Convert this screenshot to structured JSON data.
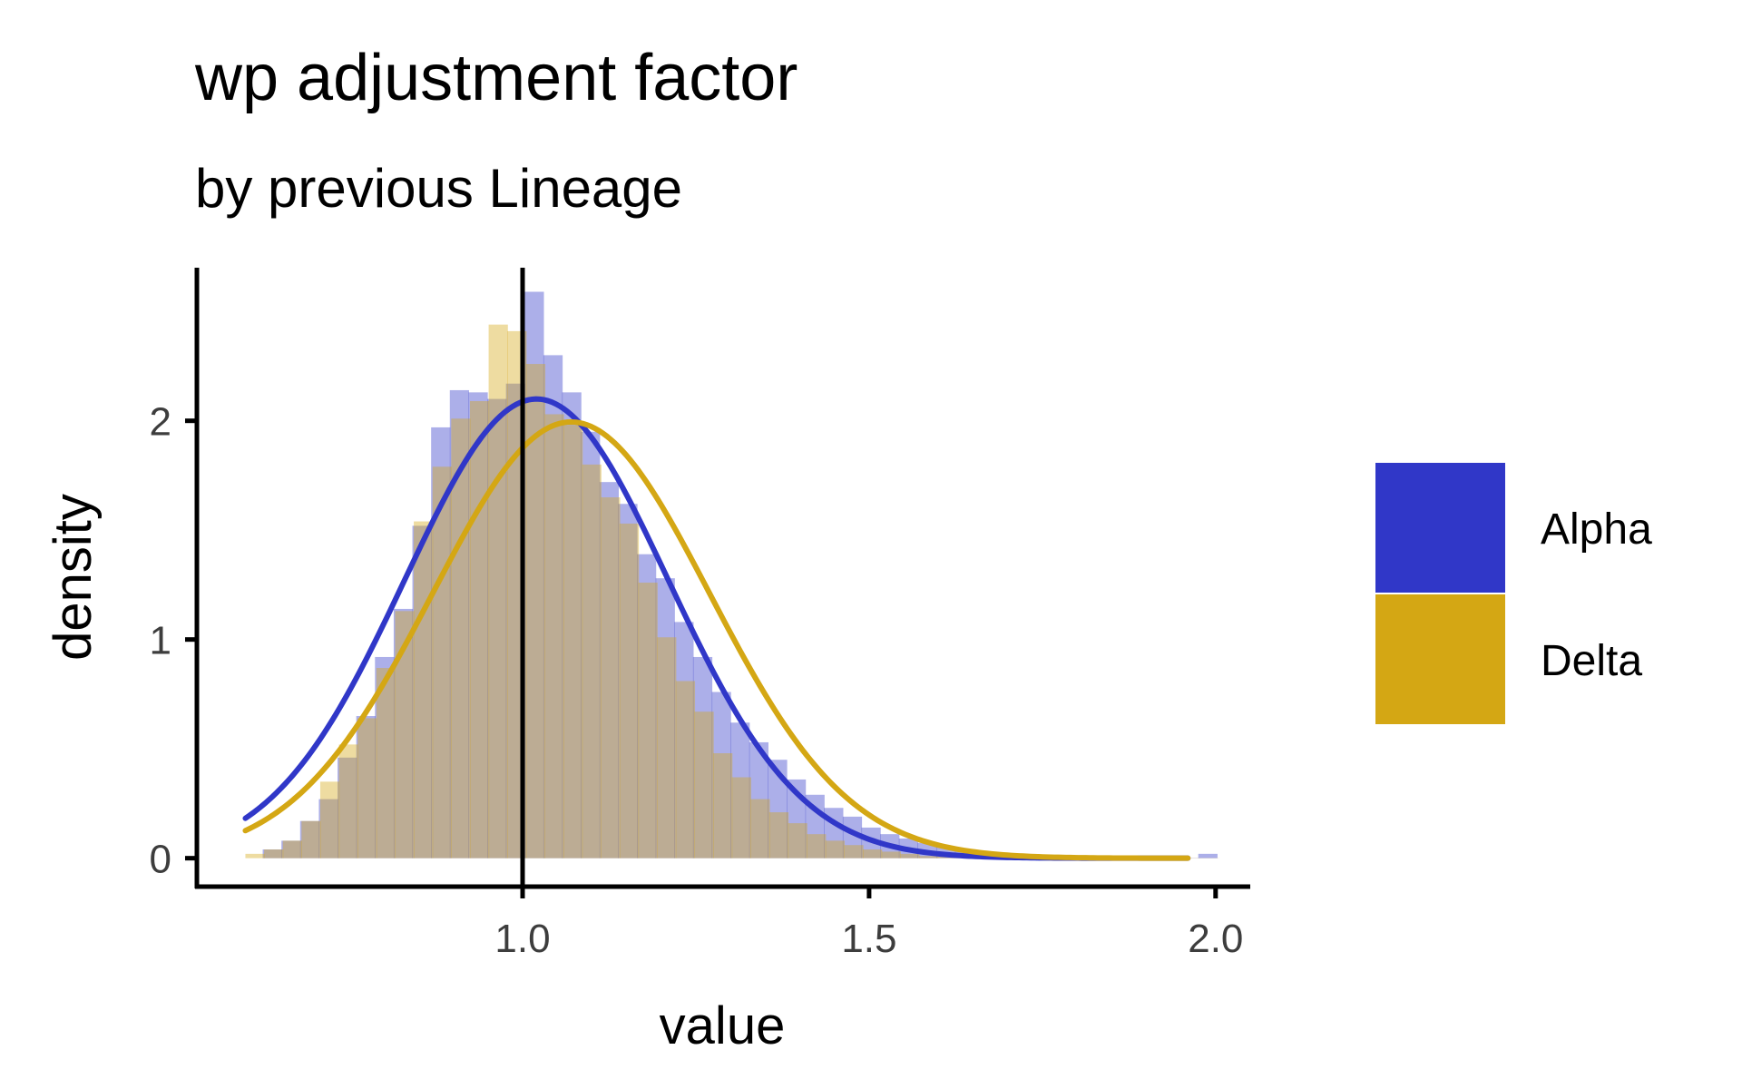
{
  "chart_data": {
    "type": "histogram",
    "title": "wp adjustment factor",
    "subtitle": "by previous Lineage",
    "xlabel": "value",
    "ylabel": "density",
    "xlim": [
      0.53,
      2.05
    ],
    "ylim": [
      -0.13,
      2.7
    ],
    "x_ticks": [
      1.0,
      1.5,
      2.0
    ],
    "x_tick_labels": [
      "1.0",
      "1.5",
      "2.0"
    ],
    "y_ticks": [
      0,
      1,
      2
    ],
    "y_tick_labels": [
      "0",
      "1",
      "2"
    ],
    "reference_line_x": 1.0,
    "legend_position": "right",
    "grid": false,
    "bin_width": 0.027,
    "series": [
      {
        "name": "Alpha",
        "color": "#3037c8",
        "fill_color": "#a9abe6",
        "bins_start": 0.625,
        "histogram": [
          0.04,
          0.08,
          0.17,
          0.27,
          0.46,
          0.65,
          0.92,
          1.14,
          1.52,
          1.97,
          2.14,
          2.13,
          2.1,
          2.17,
          2.59,
          2.3,
          2.13,
          1.95,
          1.72,
          1.62,
          1.39,
          1.28,
          1.08,
          0.92,
          0.76,
          0.62,
          0.53,
          0.45,
          0.36,
          0.29,
          0.23,
          0.19,
          0.14,
          0.11,
          0.09,
          0.07,
          0.05,
          0.03,
          0.02,
          0.015,
          0.01,
          0.008,
          0.006,
          0.005,
          0.004,
          0.003,
          0.002,
          0.002,
          0.001,
          0.001,
          0.02
        ],
        "density_mean": 1.02,
        "density_sd": 0.19,
        "density_x_range": [
          0.6,
          1.96
        ]
      },
      {
        "name": "Delta",
        "color": "#d4a714",
        "fill_color": "#eed99a",
        "bins_start": 0.6,
        "histogram": [
          0.02,
          0.04,
          0.08,
          0.17,
          0.35,
          0.52,
          0.64,
          0.87,
          1.13,
          1.54,
          1.79,
          2.01,
          2.09,
          2.44,
          2.41,
          2.26,
          2.03,
          1.98,
          1.8,
          1.65,
          1.53,
          1.26,
          1.01,
          0.81,
          0.67,
          0.48,
          0.37,
          0.27,
          0.21,
          0.16,
          0.11,
          0.08,
          0.06,
          0.04,
          0.03,
          0.02,
          0.01,
          0.008,
          0.006,
          0.004,
          0.003,
          0.002,
          0.002,
          0.001,
          0.001,
          0.001,
          0.001,
          0.001,
          0.001,
          0.001,
          0.001,
          0.001
        ],
        "density_mean": 1.07,
        "density_sd": 0.2,
        "density_x_range": [
          0.6,
          1.96
        ]
      }
    ]
  }
}
